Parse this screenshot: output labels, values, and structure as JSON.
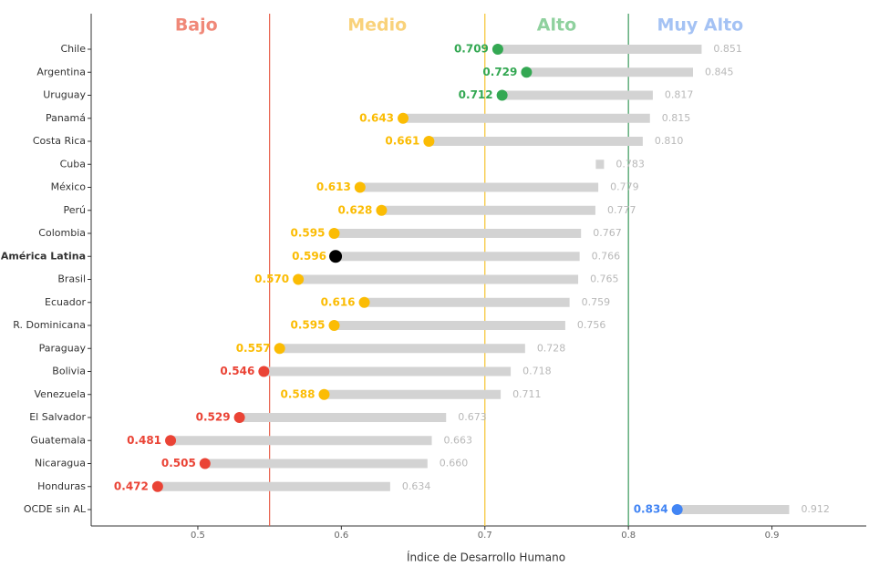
{
  "chart_data": {
    "type": "dumbbell",
    "x_label": "Índice de Desarrollo Humano",
    "categories": [
      "Chile",
      "Argentina",
      "Uruguay",
      "Panamá",
      "Costa Rica",
      "Cuba",
      "México",
      "Perú",
      "Colombia",
      "América Latina",
      "Brasil",
      "Ecuador",
      "R. Dominicana",
      "Paraguay",
      "Bolivia",
      "Venezuela",
      "El Salvador",
      "Guatemala",
      "Nicaragua",
      "Honduras",
      "OCDE sin AL"
    ],
    "highlight_index": 9,
    "values": [
      0.851,
      0.845,
      0.817,
      0.815,
      0.81,
      0.783,
      0.779,
      0.777,
      0.767,
      0.766,
      0.765,
      0.759,
      0.756,
      0.728,
      0.718,
      0.711,
      0.673,
      0.663,
      0.66,
      0.634,
      0.912
    ],
    "value_labels": [
      "0.851",
      "0.845",
      "0.817",
      "0.815",
      "0.810",
      "0.783",
      "0.779",
      "0.777",
      "0.767",
      "0.766",
      "0.765",
      "0.759",
      "0.756",
      "0.728",
      "0.718",
      "0.711",
      "0.673",
      "0.663",
      "0.660",
      "0.634",
      "0.912"
    ],
    "adjusted": [
      0.709,
      0.729,
      0.712,
      0.643,
      0.661,
      null,
      0.613,
      0.628,
      0.595,
      0.596,
      0.57,
      0.616,
      0.595,
      0.557,
      0.546,
      0.588,
      0.529,
      0.481,
      0.505,
      0.472,
      0.834
    ],
    "adjusted_labels": [
      "0.709",
      "0.729",
      "0.712",
      "0.643",
      "0.661",
      null,
      "0.613",
      "0.628",
      "0.595",
      "0.596",
      "0.570",
      "0.616",
      "0.595",
      "0.557",
      "0.546",
      "0.588",
      "0.529",
      "0.481",
      "0.505",
      "0.472",
      "0.834"
    ],
    "dot_colors": [
      "#34a853",
      "#34a853",
      "#34a853",
      "#fbbc04",
      "#fbbc04",
      null,
      "#fbbc04",
      "#fbbc04",
      "#fbbc04",
      "#000000",
      "#fbbc04",
      "#fbbc04",
      "#fbbc04",
      "#fbbc04",
      "#ea4335",
      "#fbbc04",
      "#ea4335",
      "#ea4335",
      "#ea4335",
      "#ea4335",
      "#4285f4"
    ],
    "label_colors": [
      "#34a853",
      "#34a853",
      "#34a853",
      "#fbbc04",
      "#fbbc04",
      null,
      "#fbbc04",
      "#fbbc04",
      "#fbbc04",
      "#fbbc04",
      "#fbbc04",
      "#fbbc04",
      "#fbbc04",
      "#fbbc04",
      "#ea4335",
      "#fbbc04",
      "#ea4335",
      "#ea4335",
      "#ea4335",
      "#ea4335",
      "#4285f4"
    ],
    "bar_color": "#d3d3d3",
    "bands": [
      {
        "name": "Bajo",
        "color": "#f08878"
      },
      {
        "name": "Medio",
        "color": "#f9d27a"
      },
      {
        "name": "Alto",
        "color": "#8fd19e"
      },
      {
        "name": "Muy Alto",
        "color": "#a4c2f4"
      }
    ],
    "thresholds": [
      {
        "value": 0.55,
        "color": "#e8604c"
      },
      {
        "value": 0.7,
        "color": "#f4c430"
      },
      {
        "value": 0.8,
        "color": "#3a9a5b"
      }
    ],
    "xlim": [
      0.4257,
      0.96
    ],
    "xticks": [
      0.5,
      0.6,
      0.7,
      0.8,
      0.9
    ]
  }
}
